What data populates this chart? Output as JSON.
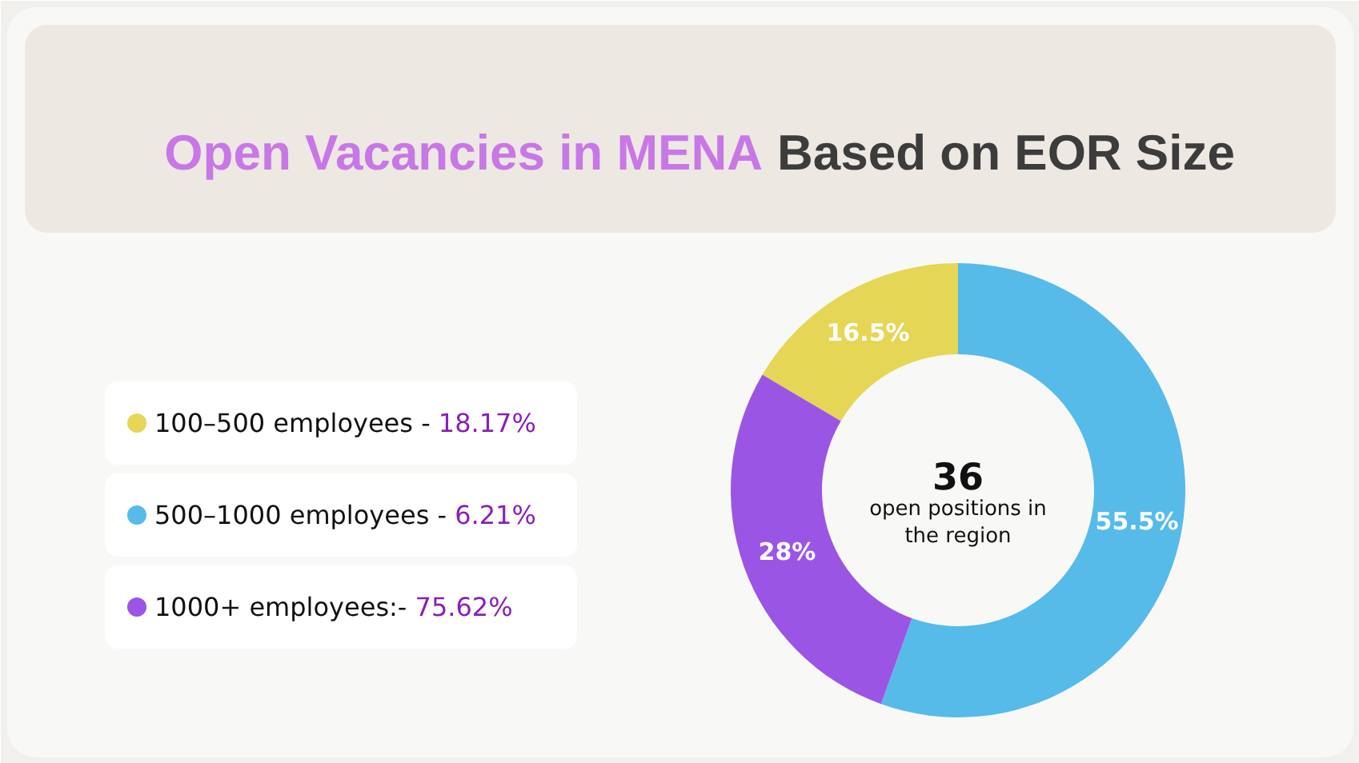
{
  "chart_data": {
    "type": "donut",
    "title": "Open Vacancies in MENA Based on EOR Size",
    "categories": [
      "100–500 employees -",
      "500–1000 employees -",
      "1000+ employees:-"
    ],
    "values": [
      16.5,
      55.5,
      28
    ],
    "colors": [
      "#e6d655",
      "#56bbe8",
      "#9b55e5"
    ],
    "value_labels": [
      "16.5%",
      "55.5%",
      "28%"
    ],
    "legend": "left",
    "annotations": [
      "18.17%",
      "6.21%",
      "75.62%",
      "36",
      "open positions in the region"
    ]
  }
}
